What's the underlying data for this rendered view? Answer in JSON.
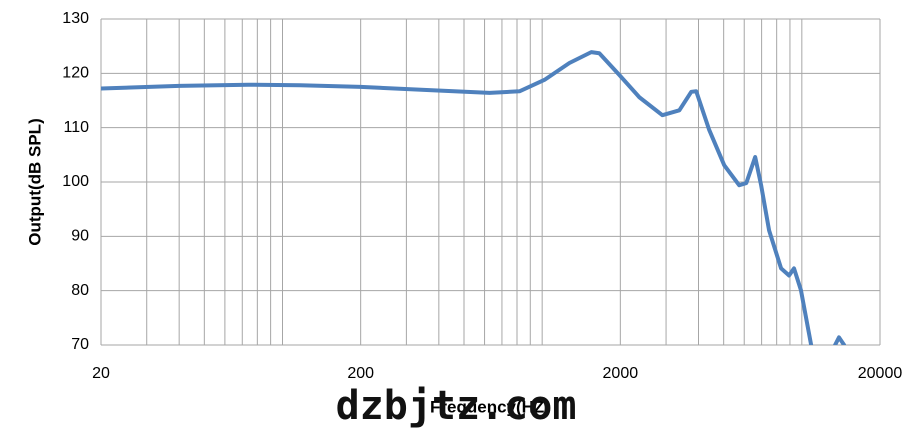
{
  "chart_data": {
    "type": "line",
    "x_label": "Frequency(HZ)",
    "y_label": "Output(dB SPL)",
    "watermark": "dzbjtz.com",
    "log_x": true,
    "grid": true,
    "xlim": [
      20,
      20000
    ],
    "ylim": [
      70,
      130
    ],
    "xticks": [
      20,
      200,
      2000,
      20000
    ],
    "yticks": [
      70,
      80,
      90,
      100,
      110,
      120,
      130
    ],
    "xgrid": [
      20,
      30,
      40,
      50,
      60,
      70,
      80,
      90,
      100,
      200,
      300,
      400,
      500,
      600,
      700,
      800,
      900,
      1000,
      2000,
      3000,
      4000,
      5000,
      6000,
      7000,
      8000,
      9000,
      10000,
      20000
    ],
    "x": [
      20,
      40,
      74,
      117,
      200,
      368,
      627,
      818,
      1021,
      1273,
      1546,
      1660,
      1983,
      2367,
      2904,
      3375,
      3752,
      3920,
      4397,
      5024,
      5740,
      6110,
      6612,
      6970,
      7480,
      8320,
      8930,
      9330,
      9920,
      10860,
      12000,
      13430,
      13900,
      14550
    ],
    "series": [
      {
        "name": "Output",
        "color": "#4f81bd",
        "values": [
          117.2,
          117.7,
          117.9,
          117.8,
          117.5,
          116.9,
          116.4,
          116.7,
          118.8,
          121.9,
          123.9,
          123.7,
          119.7,
          115.6,
          112.3,
          113.2,
          116.6,
          116.7,
          109.6,
          103.1,
          99.4,
          99.8,
          104.6,
          99.4,
          91.1,
          84.1,
          82.8,
          84.1,
          80.1,
          70,
          null,
          70,
          71.4,
          70
        ]
      }
    ]
  }
}
